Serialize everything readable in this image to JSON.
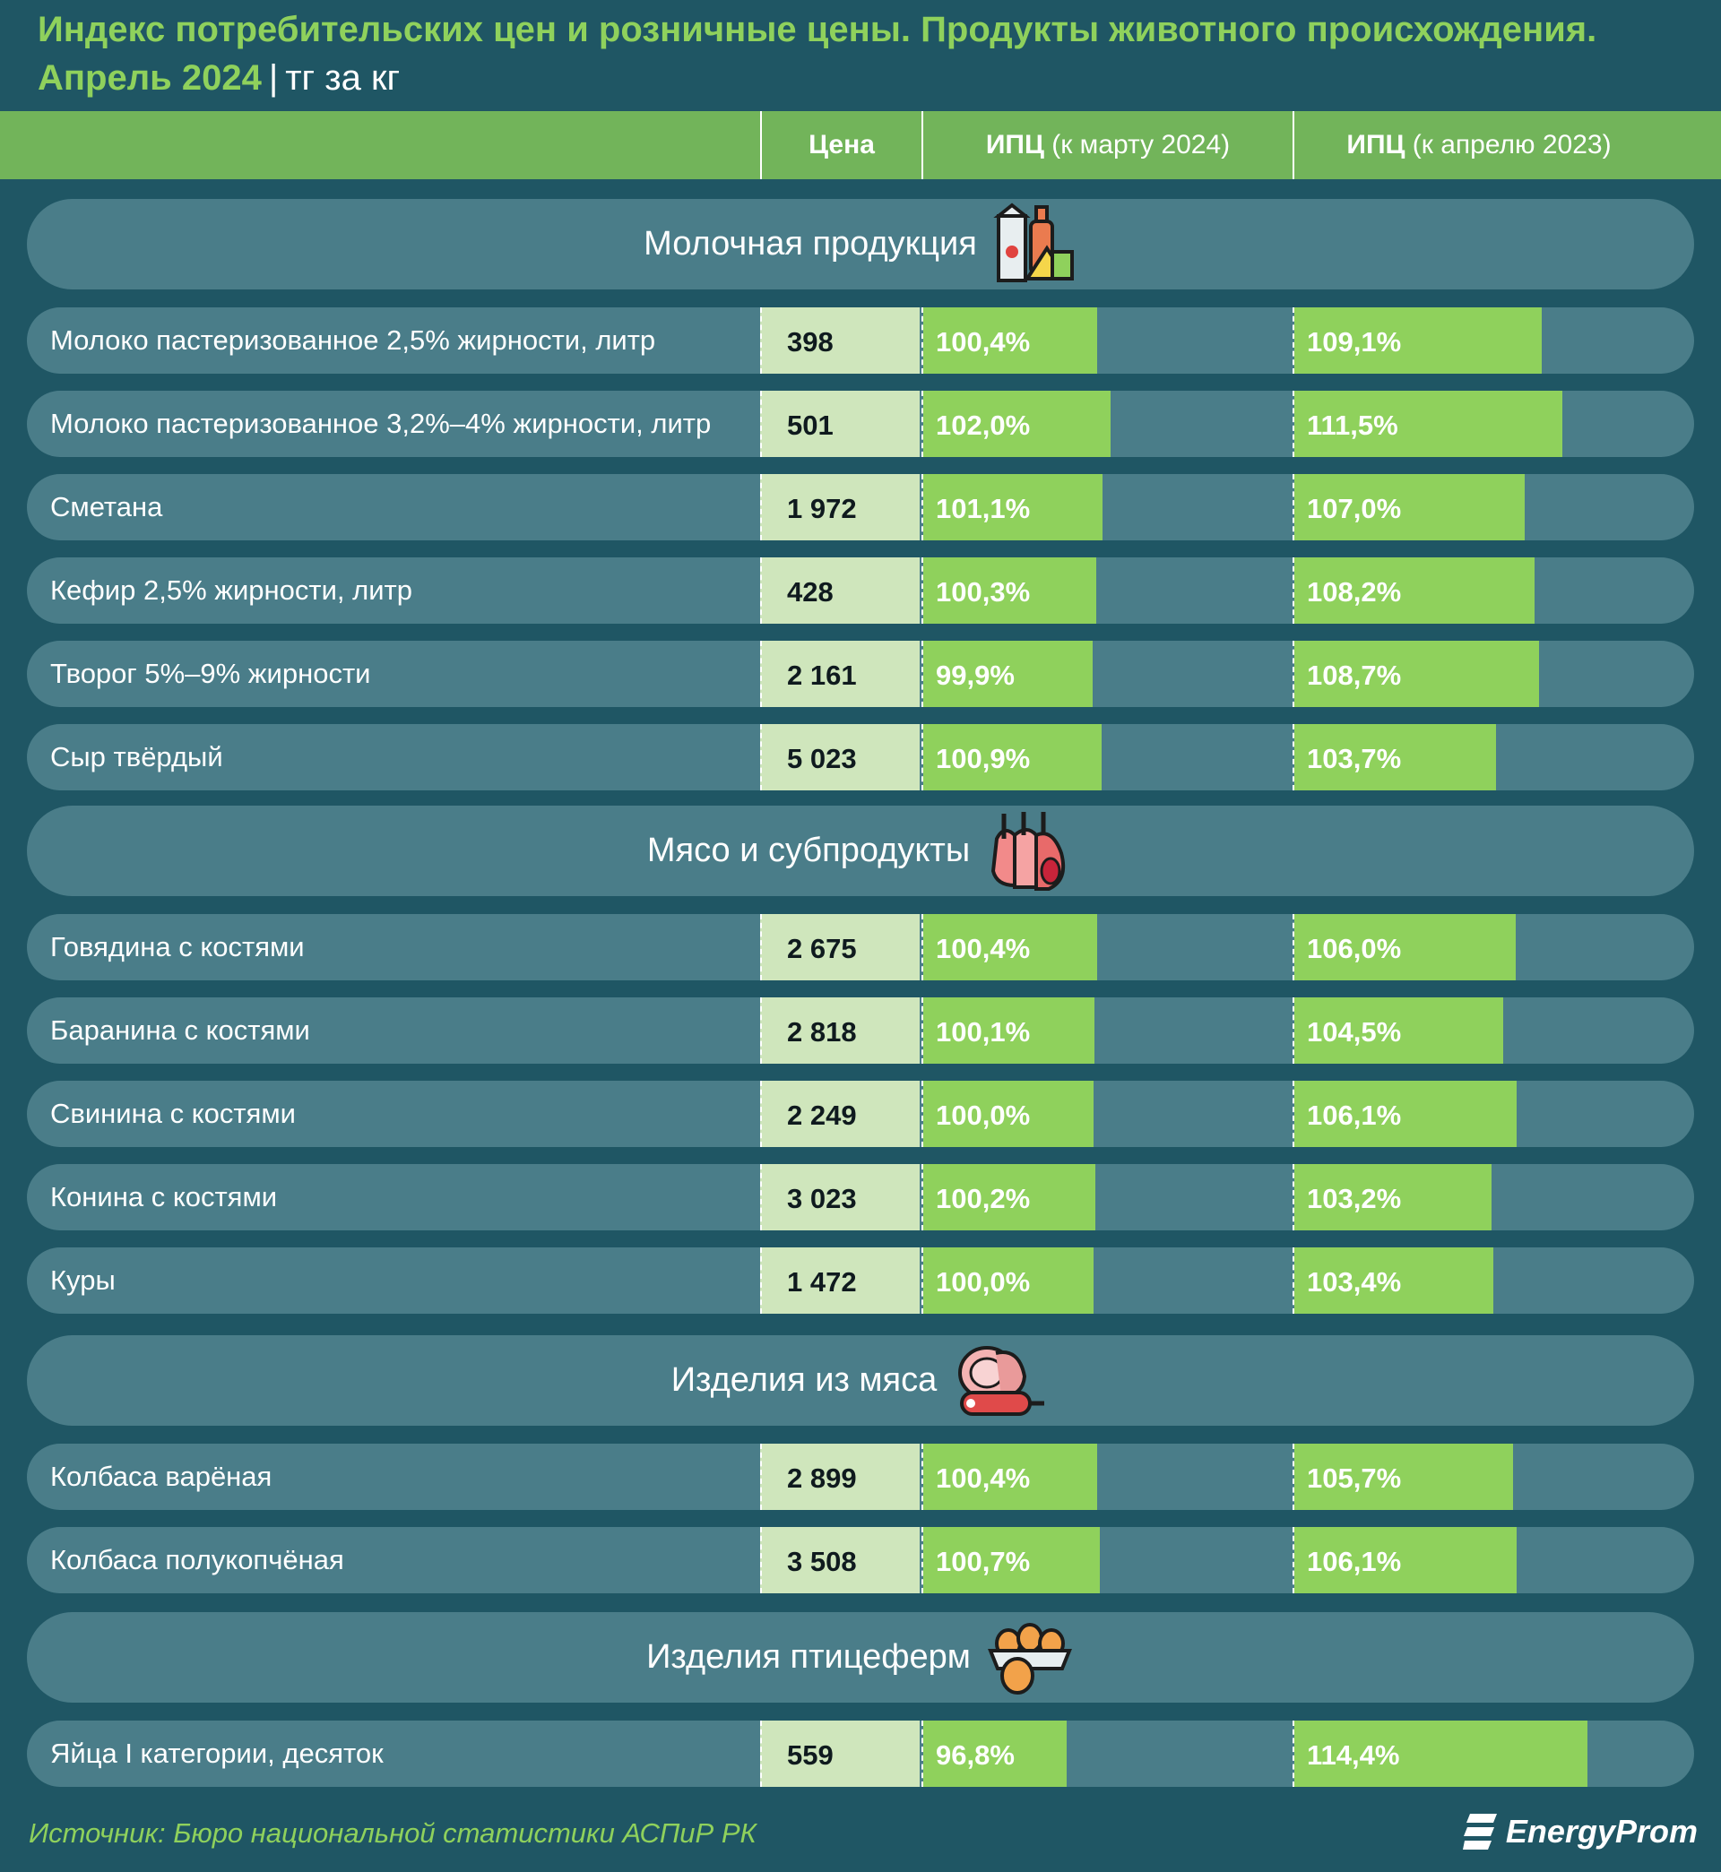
{
  "header": {
    "title": "Индекс потребительских цен и розничные цены. Продукты животного происхождения.",
    "period": "Апрель 2024",
    "unit": "тг за кг"
  },
  "columns": {
    "price": "Цена",
    "cpi_march": {
      "bold": "ИПЦ",
      "note": "(к марту 2024)"
    },
    "cpi_april": {
      "bold": "ИПЦ",
      "note": "(к апрелю 2023)"
    }
  },
  "sections": [
    {
      "name": "Молочная продукция",
      "icon": "dairy-icon",
      "rows": [
        {
          "label": "Молоко пастеризованное 2,5% жирности, литр",
          "price": "398",
          "cpi_march": "100,4%",
          "cpi_march_value": 100.4,
          "cpi_april": "109,1%",
          "cpi_april_value": 109.1
        },
        {
          "label": "Молоко пастеризованное 3,2%–4% жирности, литр",
          "price": "501",
          "cpi_march": "102,0%",
          "cpi_march_value": 102.0,
          "cpi_april": "111,5%",
          "cpi_april_value": 111.5
        },
        {
          "label": "Сметана",
          "price": "1 972",
          "cpi_march": "101,1%",
          "cpi_march_value": 101.1,
          "cpi_april": "107,0%",
          "cpi_april_value": 107.0
        },
        {
          "label": "Кефир 2,5% жирности, литр",
          "price": "428",
          "cpi_march": "100,3%",
          "cpi_march_value": 100.3,
          "cpi_april": "108,2%",
          "cpi_april_value": 108.2
        },
        {
          "label": "Творог 5%–9% жирности",
          "price": "2 161",
          "cpi_march": "99,9%",
          "cpi_march_value": 99.9,
          "cpi_april": "108,7%",
          "cpi_april_value": 108.7
        },
        {
          "label": "Сыр твёрдый",
          "price": "5 023",
          "cpi_march": "100,9%",
          "cpi_march_value": 100.9,
          "cpi_april": "103,7%",
          "cpi_april_value": 103.7
        }
      ]
    },
    {
      "name": "Мясо и субпродукты",
      "icon": "meat-icon",
      "rows": [
        {
          "label": "Говядина с костями",
          "price": "2 675",
          "cpi_march": "100,4%",
          "cpi_march_value": 100.4,
          "cpi_april": "106,0%",
          "cpi_april_value": 106.0
        },
        {
          "label": "Баранина с костями",
          "price": "2 818",
          "cpi_march": "100,1%",
          "cpi_march_value": 100.1,
          "cpi_april": "104,5%",
          "cpi_april_value": 104.5
        },
        {
          "label": "Свинина с костями",
          "price": "2 249",
          "cpi_march": "100,0%",
          "cpi_march_value": 100.0,
          "cpi_april": "106,1%",
          "cpi_april_value": 106.1
        },
        {
          "label": "Конина с костями",
          "price": "3 023",
          "cpi_march": "100,2%",
          "cpi_march_value": 100.2,
          "cpi_april": "103,2%",
          "cpi_april_value": 103.2
        },
        {
          "label": "Куры",
          "price": "1 472",
          "cpi_march": "100,0%",
          "cpi_march_value": 100.0,
          "cpi_april": "103,4%",
          "cpi_april_value": 103.4
        }
      ]
    },
    {
      "name": "Изделия из мяса",
      "icon": "sausage-icon",
      "rows": [
        {
          "label": "Колбаса варёная",
          "price": "2 899",
          "cpi_march": "100,4%",
          "cpi_march_value": 100.4,
          "cpi_april": "105,7%",
          "cpi_april_value": 105.7
        },
        {
          "label": "Колбаса полукопчёная",
          "price": "3 508",
          "cpi_march": "100,7%",
          "cpi_march_value": 100.7,
          "cpi_april": "106,1%",
          "cpi_april_value": 106.1
        }
      ]
    },
    {
      "name": "Изделия птицеферм",
      "icon": "eggs-icon",
      "rows": [
        {
          "label": "Яйца I категории, десяток",
          "price": "559",
          "cpi_march": "96,8%",
          "cpi_march_value": 96.8,
          "cpi_april": "114,4%",
          "cpi_april_value": 114.4
        }
      ]
    }
  ],
  "footer": {
    "source": "Источник: Бюро национальной статистики АСПиР РК",
    "logo": "EnergyProm"
  },
  "chart_data": {
    "type": "bar",
    "categories": [
      "Молоко пастеризованное 2,5% жирности, литр",
      "Молоко пастеризованное 3,2%–4% жирности, литр",
      "Сметана",
      "Кефир 2,5% жирности, литр",
      "Творог 5%–9% жирности",
      "Сыр твёрдый",
      "Говядина с костями",
      "Баранина с костями",
      "Свинина с костями",
      "Конина с костями",
      "Куры",
      "Колбаса варёная",
      "Колбаса полукопчёная",
      "Яйца I категории, десяток"
    ],
    "series": [
      {
        "name": "ИПЦ (к марту 2024)",
        "values": [
          100.4,
          102.0,
          101.1,
          100.3,
          99.9,
          100.9,
          100.4,
          100.1,
          100.0,
          100.2,
          100.0,
          100.4,
          100.7,
          96.8
        ]
      },
      {
        "name": "ИПЦ (к апрелю 2023)",
        "values": [
          109.1,
          111.5,
          107.0,
          108.2,
          108.7,
          103.7,
          106.0,
          104.5,
          106.1,
          103.2,
          103.4,
          105.7,
          106.1,
          114.4
        ]
      }
    ],
    "colors": {
      "bar": "#8fd15c",
      "price_cell": "#cfe6bc",
      "row": "#4a7d89",
      "header": "#72b45a"
    }
  }
}
